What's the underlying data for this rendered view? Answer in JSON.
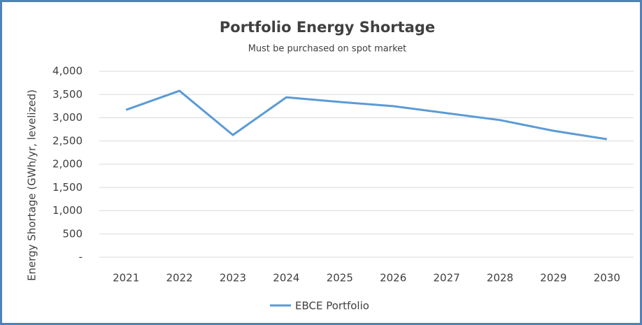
{
  "chart_data": {
    "type": "line",
    "title": "Portfolio Energy Shortage",
    "subtitle": "Must be purchased on spot market",
    "y_label": "Energy Shortage (GWh/yr, levelized)",
    "categories": [
      "2021",
      "2022",
      "2023",
      "2024",
      "2025",
      "2026",
      "2027",
      "2028",
      "2029",
      "2030"
    ],
    "series": [
      {
        "name": "EBCE Portfolio",
        "color": "#5b9bd5",
        "values": [
          3170,
          3580,
          2630,
          3440,
          3340,
          3250,
          3100,
          2950,
          2720,
          2540
        ]
      }
    ],
    "ylim": [
      0,
      4000
    ],
    "yticks": [
      {
        "value": 0,
        "label": "-"
      },
      500,
      {
        "value": 1000,
        "label": "1,000"
      },
      {
        "value": 1500,
        "label": "1,500"
      },
      {
        "value": 2000,
        "label": "2,000"
      },
      {
        "value": 2500,
        "label": "2,500"
      },
      {
        "value": 3000,
        "label": "3,000"
      },
      {
        "value": 3500,
        "label": "3,500"
      },
      {
        "value": 4000,
        "label": "4,000"
      }
    ],
    "grid": true
  }
}
